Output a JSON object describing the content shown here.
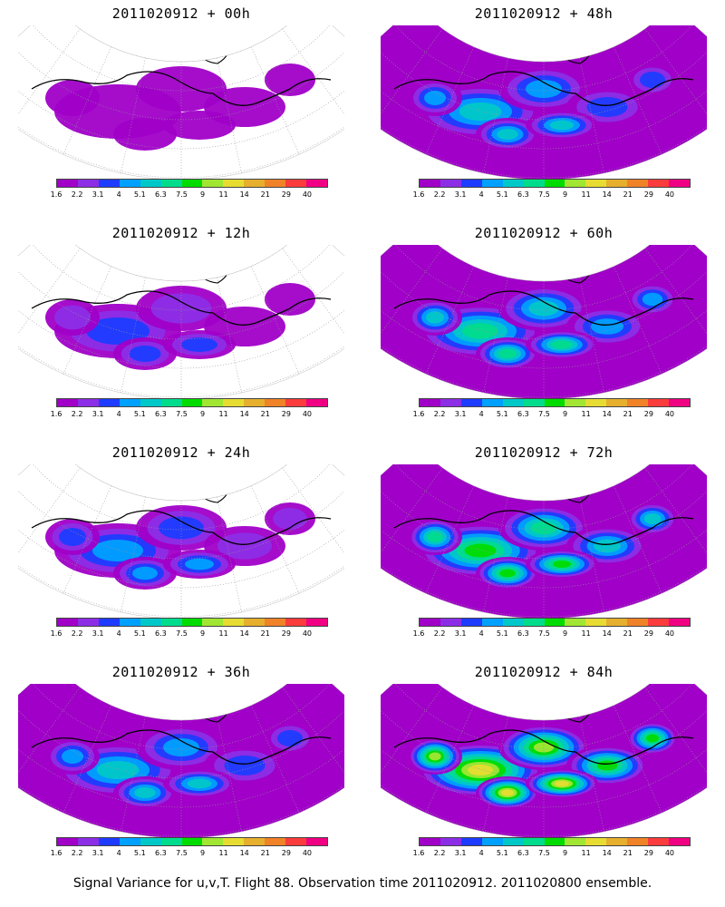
{
  "panels": [
    {
      "title": "2011020912 + 00h",
      "intensity": 0.15
    },
    {
      "title": "2011020912 + 12h",
      "intensity": 0.3
    },
    {
      "title": "2011020912 + 24h",
      "intensity": 0.4
    },
    {
      "title": "2011020912 + 36h",
      "intensity": 0.5
    },
    {
      "title": "2011020912 + 48h",
      "intensity": 0.6
    },
    {
      "title": "2011020912 + 60h",
      "intensity": 0.7
    },
    {
      "title": "2011020912 + 72h",
      "intensity": 0.82
    },
    {
      "title": "2011020912 + 84h",
      "intensity": 0.95
    }
  ],
  "colorbar": {
    "labels": [
      "1.6",
      "2.2",
      "3.1",
      "4",
      "5.1",
      "6.3",
      "7.5",
      "9",
      "11",
      "14",
      "21",
      "29",
      "40"
    ],
    "colors": [
      "#a000c8",
      "#8c2ee6",
      "#1e3cff",
      "#00a0ff",
      "#00c8c8",
      "#00dc8c",
      "#00dc00",
      "#a0e632",
      "#e6dc32",
      "#e6af2d",
      "#f08228",
      "#fa3c3c",
      "#f00082"
    ]
  },
  "caption": "Signal Variance for u,v,T. Flight 88. Observation time 2011020912. 2011020800 ensemble."
}
